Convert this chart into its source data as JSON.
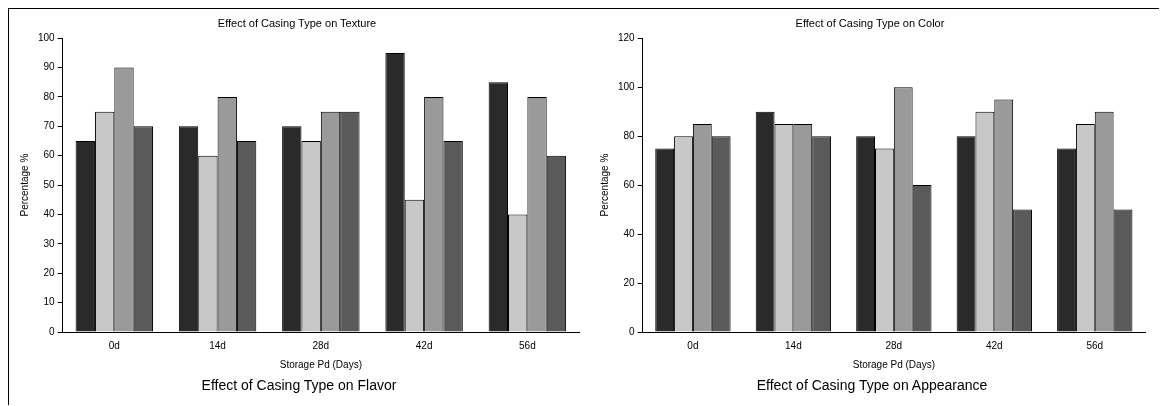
{
  "chart_data": [
    {
      "type": "bar",
      "title": "Effect of Casing Type on Texture",
      "xlabel": "Storage Pd (Days)",
      "ylabel": "Percentage %",
      "annotations": [
        "Effect of Casing Type on Flavor"
      ],
      "categories": [
        "0d",
        "14d",
        "28d",
        "42d",
        "56d"
      ],
      "series": [
        {
          "color": "#2a2a2a",
          "values": [
            65,
            70,
            70,
            95,
            85
          ]
        },
        {
          "color": "#c8c8c8",
          "values": [
            75,
            60,
            65,
            45,
            40
          ]
        },
        {
          "color": "#9a9a9a",
          "values": [
            90,
            80,
            75,
            80,
            80
          ]
        },
        {
          "color": "#5a5a5a",
          "values": [
            70,
            65,
            75,
            65,
            60
          ]
        }
      ],
      "ylim": [
        0,
        100
      ],
      "yticks": [
        0,
        10,
        20,
        30,
        40,
        50,
        60,
        70,
        80,
        90,
        100
      ],
      "grid": false,
      "legend": false
    },
    {
      "type": "bar",
      "title": "Effect of Casing Type on Color",
      "xlabel": "Storage Pd (Days)",
      "ylabel": "Percentage %",
      "annotations": [
        "Effect of Casing Type on Appearance"
      ],
      "categories": [
        "0d",
        "14d",
        "28d",
        "42d",
        "56d"
      ],
      "series": [
        {
          "color": "#2a2a2a",
          "values": [
            75,
            90,
            80,
            80,
            75
          ]
        },
        {
          "color": "#c8c8c8",
          "values": [
            80,
            85,
            75,
            90,
            85
          ]
        },
        {
          "color": "#9a9a9a",
          "values": [
            85,
            85,
            100,
            95,
            90
          ]
        },
        {
          "color": "#5a5a5a",
          "values": [
            80,
            80,
            60,
            50,
            50
          ]
        }
      ],
      "ylim": [
        0,
        120
      ],
      "yticks": [
        0,
        20,
        40,
        60,
        80,
        100,
        120
      ],
      "grid": false,
      "legend": false
    }
  ]
}
